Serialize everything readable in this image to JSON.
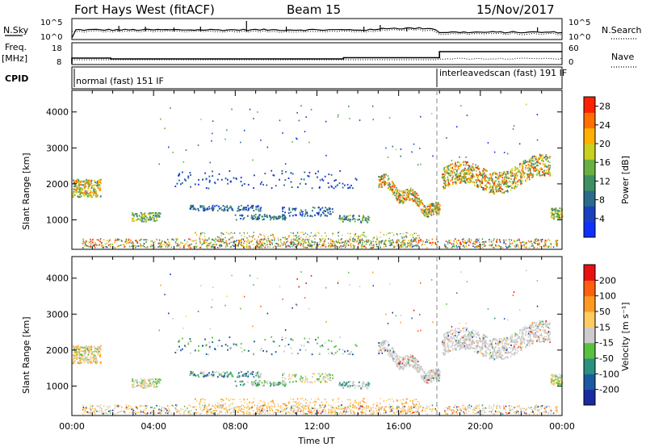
{
  "header": {
    "station": "Fort Hays West (fitACF)",
    "beam": "Beam 15",
    "date": "15/Nov/2017"
  },
  "strips": {
    "nsky_label": "N.Sky",
    "nsearch_label": "N.Search",
    "nsky_ticks": [
      "10^5",
      "10^0"
    ],
    "nsearch_ticks": [
      "10^5",
      "10^0"
    ],
    "freq_label_top": "Freq.",
    "freq_label_bottom": "[MHz]",
    "freq_ticks": [
      "18",
      "8"
    ],
    "nave_label": "Nave",
    "nave_ticks": [
      "60",
      "0"
    ],
    "cpid_label": "CPID",
    "cpid_segments": [
      {
        "name": "normal (fast) 151 IF",
        "start_h": 0,
        "end_h": 18
      },
      {
        "name": "interleavedscan (fast) 191 IF",
        "start_h": 18,
        "end_h": 24
      }
    ]
  },
  "chart_data": [
    {
      "type": "heatmap",
      "name": "power",
      "ylabel": "Slant Range [km]",
      "xlabel": "",
      "xlim": [
        0,
        24
      ],
      "ylim": [
        180,
        4600
      ],
      "yticks": [
        "1000",
        "2000",
        "3000",
        "4000"
      ],
      "colorbar": {
        "label": "Power [dB]",
        "ticks": [
          "4",
          "8",
          "12",
          "16",
          "20",
          "24",
          "28"
        ],
        "range": [
          0,
          30
        ],
        "colors": [
          "#1030ff",
          "#1a40c0",
          "#2a6a8a",
          "#3e9060",
          "#6ab040",
          "#c8d020",
          "#ffb000",
          "#ff7000",
          "#ff2000"
        ]
      }
    },
    {
      "type": "heatmap",
      "name": "velocity",
      "ylabel": "Slant Range [km]",
      "xlabel": "Time UT",
      "xlim": [
        0,
        24
      ],
      "ylim": [
        180,
        4600
      ],
      "yticks": [
        "1000",
        "2000",
        "3000",
        "4000"
      ],
      "xticks": [
        "00:00",
        "04:00",
        "08:00",
        "12:00",
        "16:00",
        "20:00",
        "00:00"
      ],
      "colorbar": {
        "label": "Velocity [m s⁻¹]",
        "ticks": [
          "200",
          "100",
          "50",
          "15",
          "-15",
          "-50",
          "-100",
          "-200"
        ],
        "colors": [
          "#1a2aa0",
          "#1a5aa0",
          "#2a9080",
          "#5ac040",
          "#cccccc",
          "#ffcc60",
          "#ff9a20",
          "#ff6010",
          "#e81010"
        ]
      }
    }
  ]
}
